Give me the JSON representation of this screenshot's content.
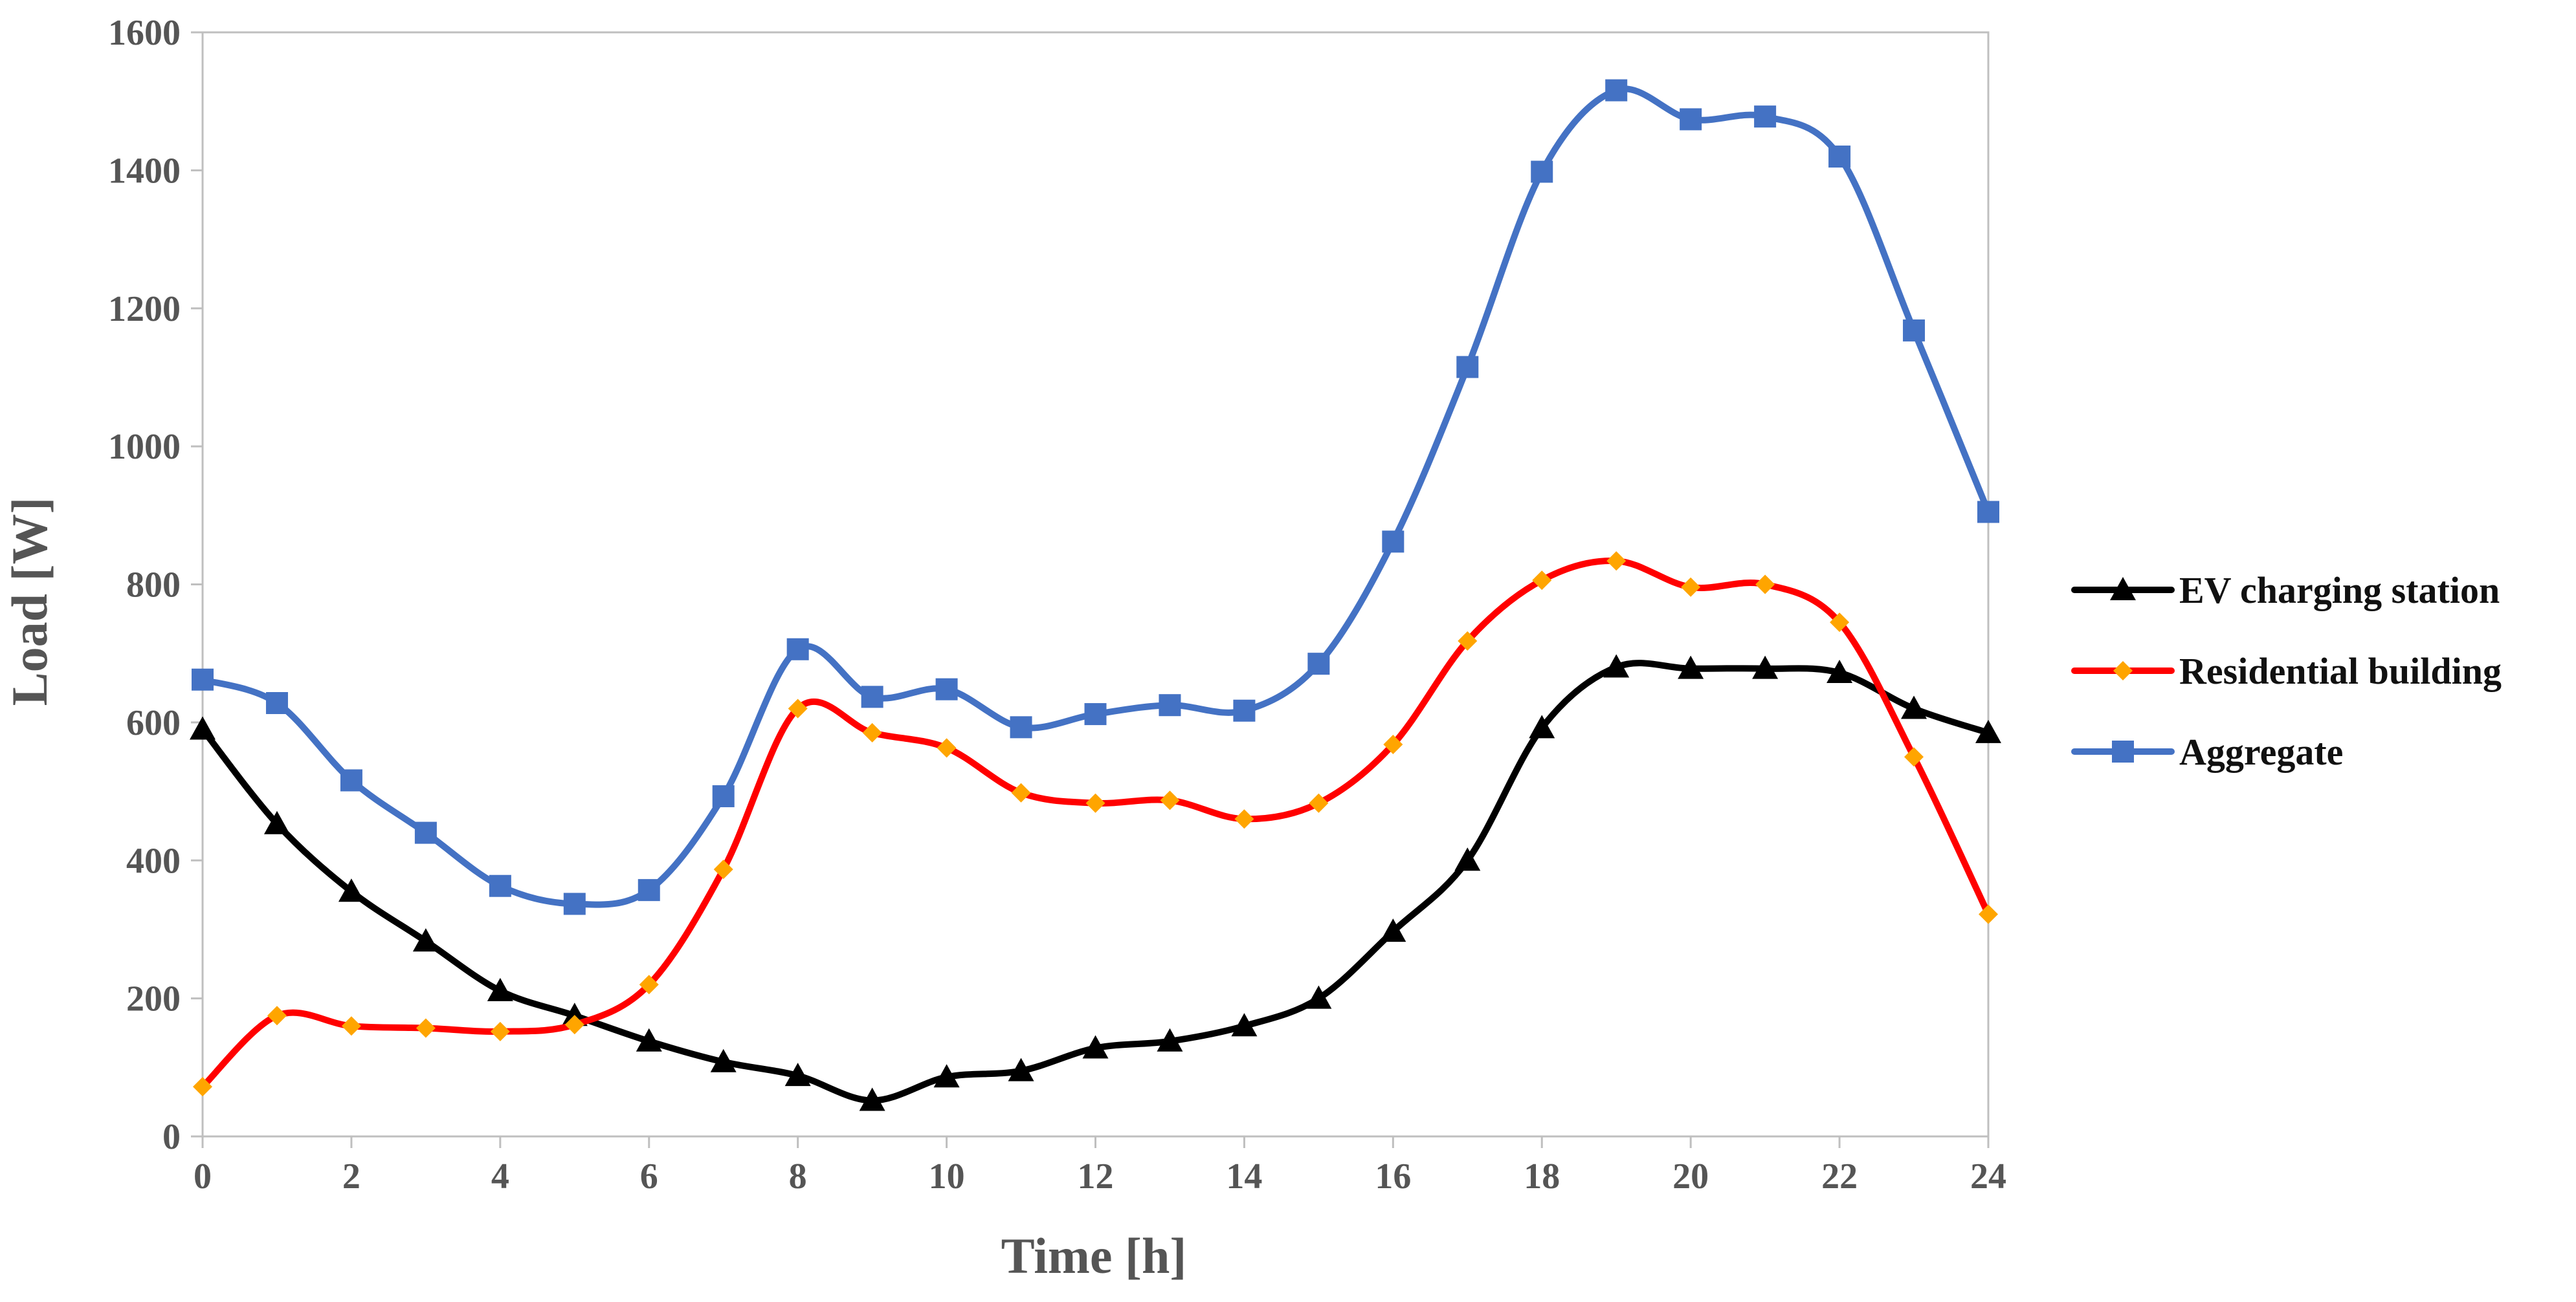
{
  "chart_data": {
    "type": "line",
    "title": "",
    "xlabel": "Time [h]",
    "ylabel": "Load [W]",
    "xlim": [
      0,
      24
    ],
    "ylim": [
      0,
      1600
    ],
    "xticks": [
      0,
      2,
      4,
      6,
      8,
      10,
      12,
      14,
      16,
      18,
      20,
      22,
      24
    ],
    "yticks": [
      0,
      200,
      400,
      600,
      800,
      1000,
      1200,
      1400,
      1600
    ],
    "grid": false,
    "legend_position": "right",
    "x": [
      0,
      1,
      2,
      3,
      4,
      5,
      6,
      7,
      8,
      9,
      10,
      11,
      12,
      13,
      14,
      15,
      16,
      17,
      18,
      19,
      20,
      21,
      22,
      23,
      24
    ],
    "series": [
      {
        "name": "EV charging station",
        "color": "#000000",
        "marker": "triangle",
        "values": [
          590,
          453,
          355,
          283,
          211,
          175,
          138,
          108,
          88,
          52,
          86,
          95,
          128,
          138,
          160,
          200,
          297,
          400,
          592,
          680,
          678,
          678,
          672,
          620,
          585
        ]
      },
      {
        "name": "Residential building",
        "color": "#ff0000",
        "marker_color": "#ffa500",
        "marker": "diamond",
        "values": [
          72,
          175,
          160,
          157,
          152,
          162,
          220,
          387,
          620,
          585,
          563,
          498,
          483,
          487,
          460,
          483,
          568,
          718,
          806,
          834,
          796,
          800,
          745,
          550,
          322
        ]
      },
      {
        "name": "Aggregate",
        "color": "#4472c4",
        "marker": "square",
        "values": [
          662,
          628,
          516,
          440,
          363,
          337,
          357,
          493,
          706,
          637,
          648,
          593,
          612,
          625,
          617,
          685,
          862,
          1115,
          1398,
          1516,
          1474,
          1478,
          1420,
          1168,
          905
        ]
      }
    ]
  }
}
